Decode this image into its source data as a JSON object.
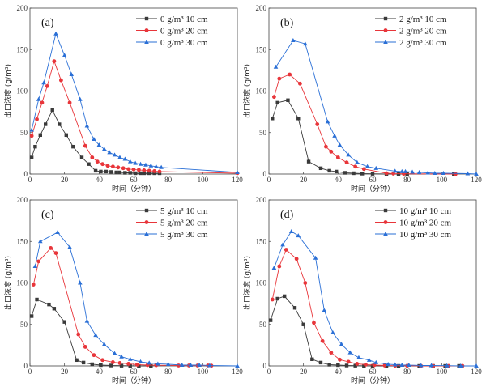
{
  "chart_data": [
    {
      "type": "line",
      "panel_label": "(a)",
      "xlabel": "时间（分钟）",
      "ylabel": "出口浓度 (g/m³)",
      "xlim": [
        0,
        120
      ],
      "ylim": [
        0,
        200
      ],
      "xticks": [
        0,
        20,
        40,
        60,
        80,
        100,
        120
      ],
      "yticks": [
        0,
        50,
        100,
        150,
        200
      ],
      "legend_position": "top-right",
      "series": [
        {
          "name": "0 g/m³ 10 cm",
          "color": "#3a3a3a",
          "marker": "square",
          "points": [
            [
              1,
              20
            ],
            [
              3,
              33
            ],
            [
              6,
              47
            ],
            [
              9,
              60
            ],
            [
              13,
              77
            ],
            [
              17,
              60
            ],
            [
              21,
              47
            ],
            [
              25,
              33
            ],
            [
              30,
              20
            ],
            [
              34,
              12
            ],
            [
              38,
              4
            ],
            [
              41,
              3
            ],
            [
              44,
              3
            ],
            [
              47,
              2.5
            ],
            [
              50,
              2
            ],
            [
              52,
              2
            ],
            [
              55,
              1.5
            ],
            [
              58,
              1.5
            ],
            [
              61,
              1
            ],
            [
              64,
              1
            ],
            [
              66,
              1
            ],
            [
              69,
              1
            ],
            [
              72,
              1
            ],
            [
              75,
              1
            ]
          ]
        },
        {
          "name": "0 g/m³ 20 cm",
          "color": "#e8353a",
          "marker": "circle",
          "points": [
            [
              1,
              46
            ],
            [
              4,
              66
            ],
            [
              7,
              86
            ],
            [
              10,
              106
            ],
            [
              14,
              136
            ],
            [
              18,
              113
            ],
            [
              23,
              86
            ],
            [
              32,
              34
            ],
            [
              36,
              20
            ],
            [
              39,
              15
            ],
            [
              42,
              12
            ],
            [
              45,
              10
            ],
            [
              48,
              9
            ],
            [
              51,
              8
            ],
            [
              54,
              7
            ],
            [
              57,
              6
            ],
            [
              60,
              5.5
            ],
            [
              63,
              5
            ],
            [
              66,
              4.5
            ],
            [
              69,
              4
            ],
            [
              72,
              3.5
            ],
            [
              75,
              3
            ],
            [
              120,
              1
            ]
          ]
        },
        {
          "name": "0 g/m³ 30 cm",
          "color": "#2a6fd6",
          "marker": "triangle",
          "points": [
            [
              1,
              53
            ],
            [
              5,
              90
            ],
            [
              8,
              110
            ],
            [
              15,
              169
            ],
            [
              20,
              143
            ],
            [
              24,
              120
            ],
            [
              29,
              90
            ],
            [
              33,
              58
            ],
            [
              37,
              42
            ],
            [
              40,
              35
            ],
            [
              43,
              30
            ],
            [
              46,
              26
            ],
            [
              49,
              23
            ],
            [
              52,
              20
            ],
            [
              55,
              18
            ],
            [
              58,
              15
            ],
            [
              61,
              13
            ],
            [
              64,
              12
            ],
            [
              67,
              11
            ],
            [
              70,
              10
            ],
            [
              73,
              9
            ],
            [
              76,
              8
            ],
            [
              120,
              2
            ]
          ]
        }
      ]
    },
    {
      "type": "line",
      "panel_label": "(b)",
      "xlabel": "时间（分钟）",
      "ylabel": "出口浓度 (g/m³)",
      "xlim": [
        0,
        120
      ],
      "ylim": [
        0,
        200
      ],
      "xticks": [
        0,
        20,
        40,
        60,
        80,
        100,
        120
      ],
      "yticks": [
        0,
        50,
        100,
        150,
        200
      ],
      "legend_position": "top-right",
      "series": [
        {
          "name": "2 g/m³ 10 cm",
          "color": "#3a3a3a",
          "marker": "square",
          "points": [
            [
              2,
              67
            ],
            [
              5,
              86
            ],
            [
              11,
              89
            ],
            [
              17,
              67
            ],
            [
              23,
              15
            ],
            [
              30,
              7
            ],
            [
              35,
              4
            ],
            [
              39,
              3
            ],
            [
              44,
              1.5
            ],
            [
              49,
              1
            ],
            [
              54,
              0.5
            ],
            [
              60,
              0.3
            ],
            [
              68,
              0
            ],
            [
              75,
              0
            ],
            [
              80,
              0
            ],
            [
              107,
              0
            ]
          ]
        },
        {
          "name": "2 g/m³ 20 cm",
          "color": "#e8353a",
          "marker": "circle",
          "points": [
            [
              3,
              93
            ],
            [
              6,
              115
            ],
            [
              12,
              120
            ],
            [
              18,
              109
            ],
            [
              28,
              60
            ],
            [
              33,
              33
            ],
            [
              36,
              27
            ],
            [
              40,
              20
            ],
            [
              45,
              14
            ],
            [
              50,
              9
            ],
            [
              55,
              6
            ],
            [
              68,
              1
            ],
            [
              72,
              0.5
            ],
            [
              78,
              0.3
            ],
            [
              108,
              0
            ]
          ]
        },
        {
          "name": "2 g/m³ 30 cm",
          "color": "#2a6fd6",
          "marker": "triangle",
          "points": [
            [
              4,
              129
            ],
            [
              14,
              161
            ],
            [
              21,
              157
            ],
            [
              34,
              63
            ],
            [
              38,
              46
            ],
            [
              41,
              35
            ],
            [
              46,
              23
            ],
            [
              51,
              14
            ],
            [
              57,
              9
            ],
            [
              62,
              7
            ],
            [
              73,
              3.5
            ],
            [
              77,
              3
            ],
            [
              79,
              3
            ],
            [
              83,
              2.5
            ],
            [
              87,
              2
            ],
            [
              92,
              1.5
            ],
            [
              96,
              1
            ],
            [
              101,
              1
            ],
            [
              115,
              0.5
            ],
            [
              120,
              0
            ]
          ]
        }
      ]
    },
    {
      "type": "line",
      "panel_label": "(c)",
      "xlabel": "时间（分钟）",
      "ylabel": "出口浓度 (g/m³)",
      "xlim": [
        0,
        120
      ],
      "ylim": [
        0,
        200
      ],
      "xticks": [
        0,
        20,
        40,
        60,
        80,
        100,
        120
      ],
      "yticks": [
        0,
        50,
        100,
        150,
        200
      ],
      "legend_position": "top-right",
      "series": [
        {
          "name": "5 g/m³ 10 cm",
          "color": "#3a3a3a",
          "marker": "square",
          "points": [
            [
              1,
              60
            ],
            [
              4,
              80
            ],
            [
              11,
              74
            ],
            [
              14,
              69
            ],
            [
              20,
              53
            ],
            [
              27,
              7
            ],
            [
              31,
              4
            ],
            [
              36,
              2
            ],
            [
              41,
              1
            ],
            [
              47,
              0.5
            ],
            [
              53,
              0.3
            ],
            [
              58,
              0.2
            ],
            [
              63,
              0
            ],
            [
              70,
              0
            ]
          ]
        },
        {
          "name": "5 g/m³ 20 cm",
          "color": "#e8353a",
          "marker": "circle",
          "points": [
            [
              2,
              98
            ],
            [
              5,
              126
            ],
            [
              12,
              142
            ],
            [
              15,
              136
            ],
            [
              28,
              38
            ],
            [
              32,
              23
            ],
            [
              37,
              13
            ],
            [
              42,
              7
            ],
            [
              48,
              4.5
            ],
            [
              52,
              3.5
            ],
            [
              57,
              2.5
            ],
            [
              62,
              1.5
            ],
            [
              68,
              1
            ],
            [
              73,
              0.8
            ],
            [
              86,
              0.5
            ],
            [
              92,
              0.5
            ],
            [
              97,
              0.5
            ],
            [
              103,
              0.5
            ],
            [
              105,
              0.3
            ]
          ]
        },
        {
          "name": "5 g/m³ 30 cm",
          "color": "#2a6fd6",
          "marker": "triangle",
          "points": [
            [
              3,
              120
            ],
            [
              6,
              150
            ],
            [
              16,
              161
            ],
            [
              23,
              143
            ],
            [
              29,
              100
            ],
            [
              33,
              54
            ],
            [
              38,
              37
            ],
            [
              43,
              26
            ],
            [
              49,
              15
            ],
            [
              53,
              11
            ],
            [
              58,
              8
            ],
            [
              64,
              5
            ],
            [
              69,
              3.5
            ],
            [
              74,
              2.5
            ],
            [
              80,
              2
            ],
            [
              88,
              1
            ],
            [
              93,
              1
            ],
            [
              98,
              1
            ],
            [
              104,
              0.5
            ],
            [
              120,
              0
            ]
          ]
        }
      ]
    },
    {
      "type": "line",
      "panel_label": "(d)",
      "xlabel": "时间（分钟）",
      "ylabel": "出口浓度 (g/m³)",
      "xlim": [
        0,
        120
      ],
      "ylim": [
        0,
        200
      ],
      "xticks": [
        0,
        20,
        40,
        60,
        80,
        100,
        120
      ],
      "yticks": [
        0,
        50,
        100,
        150,
        200
      ],
      "legend_position": "top-right",
      "series": [
        {
          "name": "10 g/m³ 10 cm",
          "color": "#3a3a3a",
          "marker": "square",
          "points": [
            [
              1,
              55
            ],
            [
              5,
              81
            ],
            [
              9,
              84
            ],
            [
              15,
              70
            ],
            [
              20,
              50
            ],
            [
              25,
              8
            ],
            [
              30,
              4
            ],
            [
              35,
              1.5
            ],
            [
              40,
              1
            ],
            [
              45,
              0.5
            ],
            [
              50,
              0.3
            ],
            [
              55,
              0.2
            ],
            [
              60,
              0
            ],
            [
              68,
              0
            ],
            [
              75,
              0
            ],
            [
              87,
              0
            ],
            [
              95,
              0
            ],
            [
              102,
              0
            ],
            [
              110,
              0
            ]
          ]
        },
        {
          "name": "10 g/m³ 20 cm",
          "color": "#e8353a",
          "marker": "circle",
          "points": [
            [
              2,
              80
            ],
            [
              6,
              120
            ],
            [
              10,
              140
            ],
            [
              16,
              129
            ],
            [
              21,
              100
            ],
            [
              26,
              52
            ],
            [
              31,
              30
            ],
            [
              36,
              16
            ],
            [
              41,
              7.5
            ],
            [
              46,
              5
            ],
            [
              51,
              2.5
            ],
            [
              56,
              1.5
            ],
            [
              61,
              1
            ],
            [
              67,
              0.5
            ],
            [
              73,
              0.3
            ],
            [
              80,
              0.2
            ],
            [
              88,
              0
            ],
            [
              95,
              0
            ],
            [
              104,
              0
            ],
            [
              112,
              0
            ]
          ]
        },
        {
          "name": "10 g/m³ 30 cm",
          "color": "#2a6fd6",
          "marker": "triangle",
          "points": [
            [
              3,
              118
            ],
            [
              8,
              146
            ],
            [
              13,
              162
            ],
            [
              17,
              157
            ],
            [
              27,
              130
            ],
            [
              32,
              67
            ],
            [
              37,
              40
            ],
            [
              42,
              26
            ],
            [
              47,
              16
            ],
            [
              52,
              10
            ],
            [
              58,
              7
            ],
            [
              62,
              4
            ],
            [
              69,
              2
            ],
            [
              73,
              1.5
            ],
            [
              77,
              1
            ],
            [
              81,
              1
            ],
            [
              88,
              0.5
            ],
            [
              94,
              0.5
            ],
            [
              103,
              0.3
            ],
            [
              111,
              0
            ],
            [
              120,
              0
            ]
          ]
        }
      ]
    }
  ]
}
